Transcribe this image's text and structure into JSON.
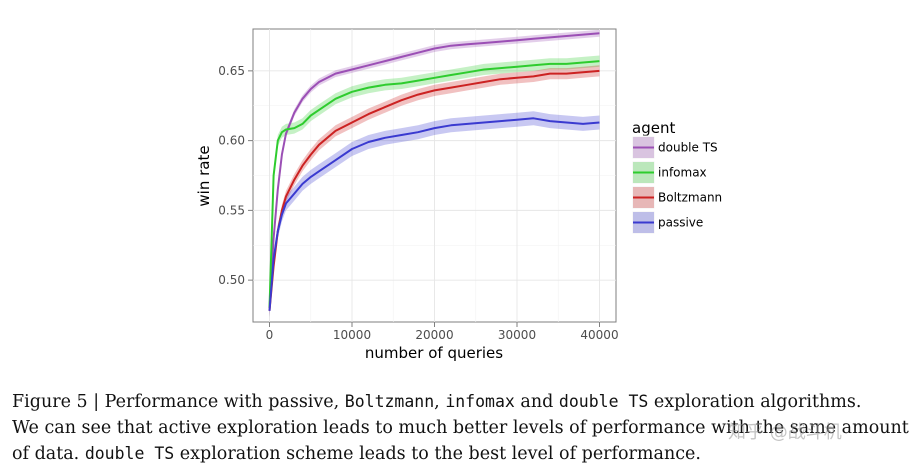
{
  "chart_data": {
    "type": "line",
    "title": "",
    "xlabel": "number of queries",
    "ylabel": "win rate",
    "xlim": [
      -2000,
      42000
    ],
    "ylim": [
      0.47,
      0.68
    ],
    "x_ticks": [
      0,
      10000,
      20000,
      30000,
      40000
    ],
    "x_tick_labels": [
      "0",
      "10000",
      "20000",
      "30000",
      "40000"
    ],
    "y_ticks": [
      0.5,
      0.55,
      0.6,
      0.65
    ],
    "y_tick_labels": [
      "0.50",
      "0.55",
      "0.60",
      "0.65"
    ],
    "grid": true,
    "legend_title": "agent",
    "legend_position": "right",
    "x": [
      0,
      500,
      1000,
      1500,
      2000,
      3000,
      4000,
      5000,
      6000,
      8000,
      10000,
      12000,
      14000,
      16000,
      18000,
      20000,
      22000,
      24000,
      26000,
      28000,
      30000,
      32000,
      34000,
      36000,
      38000,
      40000
    ],
    "series": [
      {
        "name": "double TS",
        "color": "#9b4fb5",
        "band": 0.0025,
        "values": [
          0.48,
          0.53,
          0.565,
          0.59,
          0.605,
          0.62,
          0.63,
          0.637,
          0.642,
          0.648,
          0.651,
          0.654,
          0.657,
          0.66,
          0.663,
          0.666,
          0.668,
          0.669,
          0.67,
          0.671,
          0.672,
          0.673,
          0.674,
          0.675,
          0.676,
          0.677
        ]
      },
      {
        "name": "infomax",
        "color": "#2ecc2e",
        "band": 0.004,
        "values": [
          0.48,
          0.575,
          0.6,
          0.606,
          0.608,
          0.609,
          0.612,
          0.618,
          0.622,
          0.63,
          0.635,
          0.638,
          0.64,
          0.641,
          0.643,
          0.645,
          0.647,
          0.649,
          0.651,
          0.652,
          0.653,
          0.654,
          0.655,
          0.655,
          0.656,
          0.657
        ]
      },
      {
        "name": "Boltzmann",
        "color": "#cc2222",
        "band": 0.004,
        "values": [
          0.478,
          0.51,
          0.535,
          0.55,
          0.56,
          0.572,
          0.582,
          0.59,
          0.597,
          0.607,
          0.613,
          0.619,
          0.624,
          0.629,
          0.633,
          0.636,
          0.638,
          0.64,
          0.642,
          0.644,
          0.645,
          0.646,
          0.648,
          0.648,
          0.649,
          0.65
        ]
      },
      {
        "name": "passive",
        "color": "#3a3ad0",
        "band": 0.005,
        "values": [
          0.478,
          0.515,
          0.535,
          0.547,
          0.555,
          0.562,
          0.569,
          0.574,
          0.578,
          0.586,
          0.594,
          0.599,
          0.602,
          0.604,
          0.606,
          0.609,
          0.611,
          0.612,
          0.613,
          0.614,
          0.615,
          0.616,
          0.614,
          0.613,
          0.612,
          0.613
        ]
      }
    ]
  },
  "caption": {
    "line1_a": "Figure 5 | Performance with passive, ",
    "line1_b": "Boltzmann",
    "line1_c": ", ",
    "line1_d": "infomax",
    "line1_e": " and ",
    "line1_f": "double TS",
    "line1_g": " exploration algorithms.",
    "line2": "We can see that active exploration leads to much better levels of performance with the same amount",
    "line3_a": "of data. ",
    "line3_b": "double TS",
    "line3_c": " exploration scheme leads to the best level of performance."
  },
  "watermark": "知乎 @战斗机"
}
